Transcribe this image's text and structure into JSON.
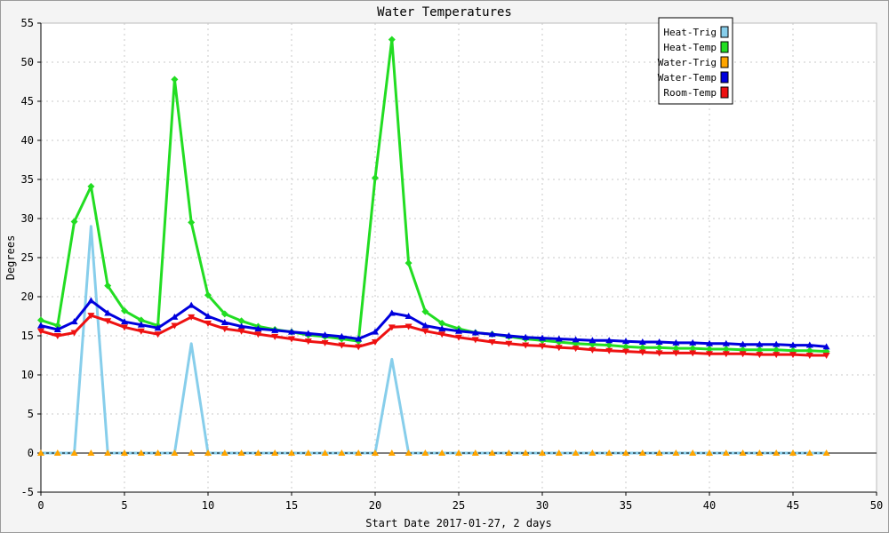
{
  "chart_data": {
    "type": "line",
    "title": "Water Temperatures",
    "xlabel": "Start Date 2017-01-27, 2 days",
    "ylabel": "Degrees",
    "xlim": [
      0,
      50
    ],
    "ylim": [
      -5,
      55
    ],
    "xticks": [
      0,
      5,
      10,
      15,
      20,
      25,
      30,
      35,
      40,
      45,
      50
    ],
    "yticks": [
      -5,
      0,
      5,
      10,
      15,
      20,
      25,
      30,
      35,
      40,
      45,
      50,
      55
    ],
    "grid": true,
    "legend_position": "top-right",
    "series": [
      {
        "name": "Heat-Trig",
        "color": "#87ceeb",
        "marker": "none",
        "x": [
          0,
          1,
          2,
          3,
          4,
          5,
          6,
          7,
          8,
          9,
          10,
          11,
          12,
          13,
          14,
          15,
          16,
          17,
          18,
          19,
          20,
          21,
          22,
          23,
          24,
          25,
          26,
          27,
          28,
          29,
          30,
          31,
          32,
          33,
          34,
          35,
          36,
          37,
          38,
          39,
          40,
          41,
          42,
          43,
          44,
          45,
          46,
          47
        ],
        "values": [
          0,
          0,
          0,
          29,
          0,
          0,
          0,
          0,
          0,
          14,
          0,
          0,
          0,
          0,
          0,
          0,
          0,
          0,
          0,
          0,
          0,
          12,
          0,
          0,
          0,
          0,
          0,
          0,
          0,
          0,
          0,
          0,
          0,
          0,
          0,
          0,
          0,
          0,
          0,
          0,
          0,
          0,
          0,
          0,
          0,
          0,
          0,
          0
        ]
      },
      {
        "name": "Heat-Temp",
        "color": "#22dd22",
        "marker": "diamond",
        "x": [
          0,
          1,
          2,
          3,
          4,
          5,
          6,
          7,
          8,
          9,
          10,
          11,
          12,
          13,
          14,
          15,
          16,
          17,
          18,
          19,
          20,
          21,
          22,
          23,
          24,
          25,
          26,
          27,
          28,
          29,
          30,
          31,
          32,
          33,
          34,
          35,
          36,
          37,
          38,
          39,
          40,
          41,
          42,
          43,
          44,
          45,
          46,
          47
        ],
        "values": [
          17,
          16.3,
          29.6,
          34.1,
          21.4,
          18.2,
          17,
          16.3,
          47.8,
          29.5,
          20.2,
          17.8,
          16.9,
          16.2,
          15.8,
          15.5,
          15.1,
          14.9,
          14.6,
          14.3,
          35.2,
          52.9,
          24.3,
          18.1,
          16.6,
          15.9,
          15.4,
          15.2,
          14.9,
          14.6,
          14.4,
          14.2,
          14,
          13.9,
          13.8,
          13.6,
          13.5,
          13.5,
          13.4,
          13.4,
          13.3,
          13.3,
          13.2,
          13.2,
          13.2,
          13.1,
          13.1,
          13
        ]
      },
      {
        "name": "Water-Trig",
        "color": "#ffa500",
        "marker": "triangle-up",
        "x": [
          0,
          1,
          2,
          3,
          4,
          5,
          6,
          7,
          8,
          9,
          10,
          11,
          12,
          13,
          14,
          15,
          16,
          17,
          18,
          19,
          20,
          21,
          22,
          23,
          24,
          25,
          26,
          27,
          28,
          29,
          30,
          31,
          32,
          33,
          34,
          35,
          36,
          37,
          38,
          39,
          40,
          41,
          42,
          43,
          44,
          45,
          46,
          47
        ],
        "values": [
          0,
          0,
          0,
          0,
          0,
          0,
          0,
          0,
          0,
          0,
          0,
          0,
          0,
          0,
          0,
          0,
          0,
          0,
          0,
          0,
          0,
          0,
          0,
          0,
          0,
          0,
          0,
          0,
          0,
          0,
          0,
          0,
          0,
          0,
          0,
          0,
          0,
          0,
          0,
          0,
          0,
          0,
          0,
          0,
          0,
          0,
          0,
          0
        ]
      },
      {
        "name": "Water-Temp",
        "color": "#0000dd",
        "marker": "triangle-up",
        "x": [
          0,
          1,
          2,
          3,
          4,
          5,
          6,
          7,
          8,
          9,
          10,
          11,
          12,
          13,
          14,
          15,
          16,
          17,
          18,
          19,
          20,
          21,
          22,
          23,
          24,
          25,
          26,
          27,
          28,
          29,
          30,
          31,
          32,
          33,
          34,
          35,
          36,
          37,
          38,
          39,
          40,
          41,
          42,
          43,
          44,
          45,
          46,
          47
        ],
        "values": [
          16.3,
          15.8,
          16.8,
          19.5,
          17.9,
          16.8,
          16.4,
          16,
          17.4,
          18.9,
          17.5,
          16.7,
          16.2,
          15.9,
          15.7,
          15.5,
          15.3,
          15.1,
          14.9,
          14.6,
          15.5,
          17.9,
          17.5,
          16.3,
          15.9,
          15.6,
          15.4,
          15.2,
          15,
          14.8,
          14.7,
          14.6,
          14.5,
          14.4,
          14.4,
          14.3,
          14.2,
          14.2,
          14.1,
          14.1,
          14,
          14,
          13.9,
          13.9,
          13.9,
          13.8,
          13.8,
          13.6
        ]
      },
      {
        "name": "Room-Temp",
        "color": "#ee1111",
        "marker": "triangle-down",
        "x": [
          0,
          1,
          2,
          3,
          4,
          5,
          6,
          7,
          8,
          9,
          10,
          11,
          12,
          13,
          14,
          15,
          16,
          17,
          18,
          19,
          20,
          21,
          22,
          23,
          24,
          25,
          26,
          27,
          28,
          29,
          30,
          31,
          32,
          33,
          34,
          35,
          36,
          37,
          38,
          39,
          40,
          41,
          42,
          43,
          44,
          45,
          46,
          47
        ],
        "values": [
          15.6,
          15,
          15.4,
          17.6,
          16.9,
          16.1,
          15.6,
          15.2,
          16.3,
          17.4,
          16.6,
          15.9,
          15.6,
          15.2,
          14.9,
          14.6,
          14.3,
          14.1,
          13.8,
          13.6,
          14.2,
          16.1,
          16.2,
          15.6,
          15.2,
          14.8,
          14.5,
          14.2,
          14,
          13.8,
          13.7,
          13.5,
          13.4,
          13.2,
          13.1,
          13,
          12.9,
          12.8,
          12.8,
          12.8,
          12.7,
          12.7,
          12.7,
          12.6,
          12.6,
          12.6,
          12.5,
          12.5
        ]
      }
    ]
  }
}
